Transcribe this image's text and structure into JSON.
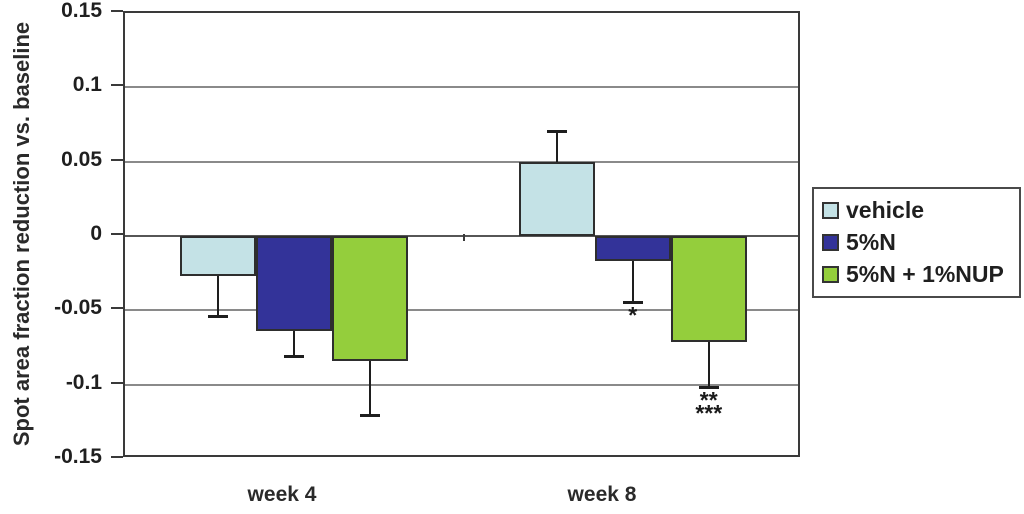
{
  "chart_data": {
    "type": "bar",
    "title": "",
    "xlabel": "",
    "ylabel": "Spot area fraction reduction vs. baseline",
    "categories": [
      "week 4",
      "week 8"
    ],
    "series": [
      {
        "name": "vehicle",
        "color": "#c4e2e6",
        "values": [
          -0.027,
          0.05
        ],
        "errors": [
          0.027,
          0.02
        ]
      },
      {
        "name": "5%N",
        "color": "#333399",
        "values": [
          -0.064,
          -0.017
        ],
        "errors": [
          0.017,
          0.028
        ]
      },
      {
        "name": "5%N + 1%NUP",
        "color": "#94ce3c",
        "values": [
          -0.084,
          -0.071
        ],
        "errors": [
          0.037,
          0.031
        ]
      }
    ],
    "ylim": [
      -0.15,
      0.15
    ],
    "yticks": [
      0.15,
      0.1,
      0.05,
      0,
      -0.05,
      -0.1,
      -0.15
    ],
    "ytick_labels": [
      "0.15",
      "0.1",
      "0.05",
      "0",
      "-0.05",
      "-0.1",
      "-0.15"
    ],
    "grid": true,
    "legend_position": "right-outside",
    "error_bar_direction": "away-from-zero",
    "annotations": [
      {
        "category_index": 1,
        "series_index": 1,
        "lines": [
          "*"
        ]
      },
      {
        "category_index": 1,
        "series_index": 2,
        "lines": [
          "**",
          "***"
        ]
      }
    ],
    "colors": {
      "plot_border": "#3a3a3a",
      "gridline": "#8a8a8a",
      "zero_line": "#565656",
      "bar_border": "#2e2e2e",
      "error_bar": "#1e1e1e",
      "text": "#1f1f1f",
      "background": "#ffffff"
    }
  }
}
